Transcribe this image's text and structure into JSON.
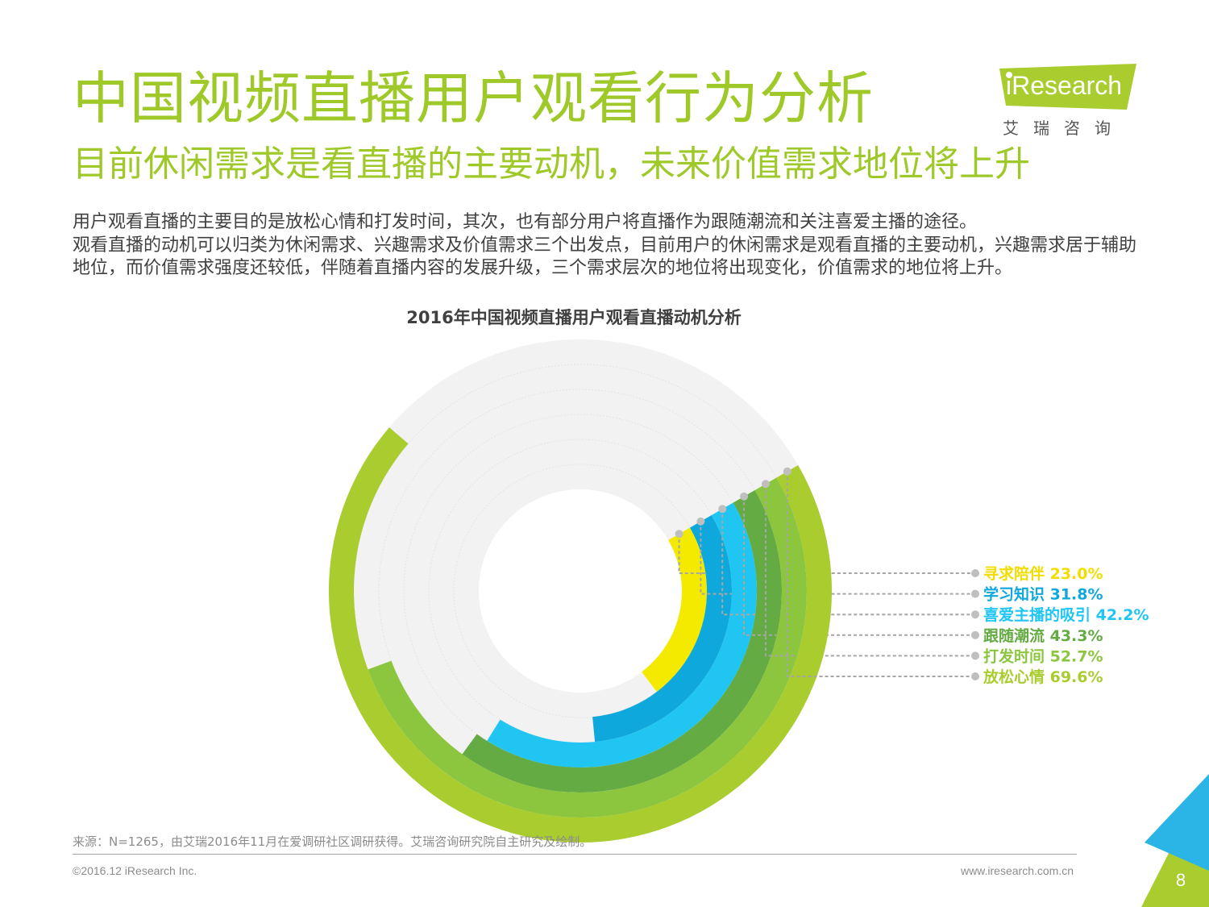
{
  "header": {
    "title": "中国视频直播用户观看行为分析",
    "subtitle": "目前休闲需求是看直播的主要动机，未来价值需求地位将上升"
  },
  "logo": {
    "brand": "iResearch",
    "chinese": "艾瑞咨询"
  },
  "body": {
    "paragraph1": "用户观看直播的主要目的是放松心情和打发时间，其次，也有部分用户将直播作为跟随潮流和关注喜爱主播的途径。",
    "paragraph2": "观看直播的动机可以归类为休闲需求、兴趣需求及价值需求三个出发点，目前用户的休闲需求是观看直播的主要动机，兴趣需求居于辅助地位，而价值需求强度还较低，伴随着直播内容的发展升级，三个需求层次的地位将出现变化，价值需求的地位将上升。"
  },
  "chart_data": {
    "type": "radial-bar",
    "title": "2016年中国视频直播用户观看直播动机分析",
    "unit": "%",
    "max": 100,
    "series": [
      {
        "name": "寻求陪伴",
        "value": 23.0,
        "label": "寻求陪伴 23.0%",
        "color": "#f4ea00"
      },
      {
        "name": "学习知识",
        "value": 31.8,
        "label": "学习知识 31.8%",
        "color": "#0fa8dc"
      },
      {
        "name": "喜爱主播的吸引",
        "value": 42.2,
        "label": "喜爱主播的吸引 42.2%",
        "color": "#20c5f2"
      },
      {
        "name": "跟随潮流",
        "value": 43.3,
        "label": "跟随潮流 43.3%",
        "color": "#64ab43"
      },
      {
        "name": "打发时间",
        "value": 52.7,
        "label": "打发时间 52.7%",
        "color": "#8cc63e"
      },
      {
        "name": "放松心情",
        "value": 69.6,
        "label": "放松心情 69.6%",
        "color": "#a9cc2f"
      }
    ],
    "track_color": "#f2f2f2"
  },
  "footer": {
    "source": "来源：N=1265，由艾瑞2016年11月在爱调研社区调研获得。艾瑞咨询研究院自主研究及绘制。",
    "copyright": "©2016.12 iResearch Inc.",
    "website": "www.iresearch.com.cn",
    "page": "8"
  },
  "colors": {
    "accent_green": "#9ec928",
    "corner_blue": "#2bb5e6",
    "corner_green": "#a9cc2f"
  }
}
